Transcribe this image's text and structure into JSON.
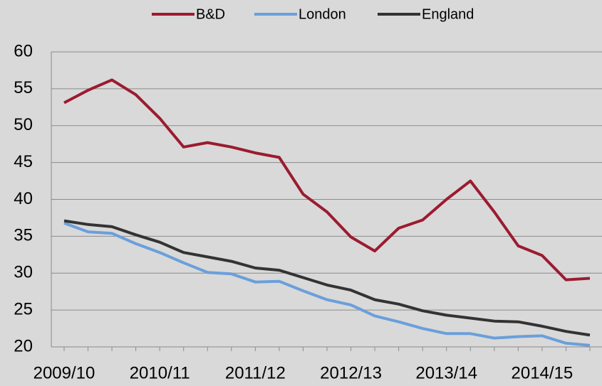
{
  "chart_data": {
    "type": "line",
    "categories": [
      "2009/10",
      null,
      null,
      null,
      "2010/11",
      null,
      null,
      null,
      "2011/12",
      null,
      null,
      null,
      "2012/13",
      null,
      null,
      null,
      "2013/14",
      null,
      null,
      null,
      "2014/15",
      null,
      null
    ],
    "series": [
      {
        "name": "B&D",
        "color": "#9b1b30",
        "values": [
          53.1,
          54.8,
          56.2,
          54.2,
          51.0,
          47.1,
          47.7,
          47.1,
          46.3,
          45.7,
          40.7,
          38.3,
          34.9,
          33.0,
          36.1,
          37.2,
          40.0,
          42.5,
          38.3,
          33.7,
          32.4,
          29.1,
          29.3
        ]
      },
      {
        "name": "London",
        "color": "#6a9fdb",
        "values": [
          36.8,
          35.6,
          35.4,
          34.0,
          32.8,
          31.4,
          30.1,
          29.9,
          28.8,
          28.9,
          27.6,
          26.4,
          25.7,
          24.2,
          23.4,
          22.5,
          21.8,
          21.8,
          21.2,
          21.4,
          21.5,
          20.5,
          20.2
        ]
      },
      {
        "name": "England",
        "color": "#333333",
        "values": [
          37.1,
          36.6,
          36.3,
          35.2,
          34.2,
          32.8,
          32.2,
          31.6,
          30.7,
          30.4,
          29.4,
          28.4,
          27.7,
          26.4,
          25.8,
          24.9,
          24.3,
          23.9,
          23.5,
          23.4,
          22.8,
          22.1,
          21.6
        ]
      }
    ],
    "ylim": [
      20,
      60
    ],
    "yticks": [
      20,
      25,
      30,
      35,
      40,
      45,
      50,
      55,
      60
    ],
    "grid": true,
    "legend": "top"
  }
}
